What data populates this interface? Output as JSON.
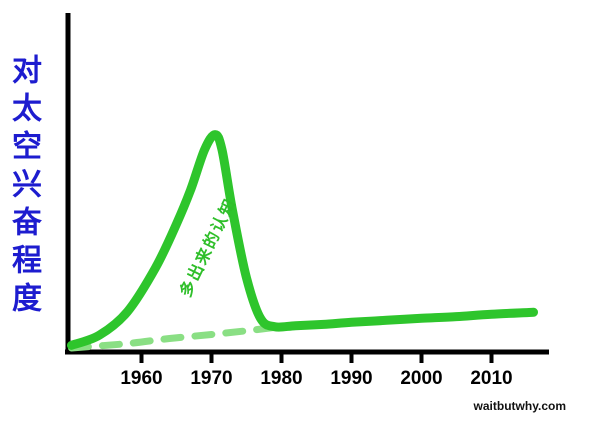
{
  "page": {
    "background": "#ffffff"
  },
  "y_axis_title": {
    "text": "对太空兴奋程度",
    "color": "#1d1ccf"
  },
  "watermark": "waitbutwhy.com",
  "chart_data": {
    "type": "line",
    "title": "",
    "xlabel": "",
    "ylabel": "对太空兴奋程度",
    "x_ticks": [
      1960,
      1970,
      1980,
      1990,
      2000,
      2010
    ],
    "x_range": [
      1950,
      2017
    ],
    "y_range": [
      0,
      1
    ],
    "grid": false,
    "legend": "none",
    "annotation": {
      "text": "多出来的认知",
      "color": "#2fbf2a",
      "x_year": 1966.8,
      "y_value": 0.16,
      "rotation_deg": -64
    },
    "series": [
      {
        "name": "excitement-curve",
        "style": "solid",
        "color": "#2ec52c",
        "width": 9,
        "points": [
          [
            1950,
            0.02
          ],
          [
            1954,
            0.05
          ],
          [
            1958,
            0.12
          ],
          [
            1962,
            0.25
          ],
          [
            1965,
            0.38
          ],
          [
            1967,
            0.48
          ],
          [
            1969,
            0.6
          ],
          [
            1970.5,
            0.645
          ],
          [
            1971.5,
            0.6
          ],
          [
            1973,
            0.42
          ],
          [
            1975,
            0.22
          ],
          [
            1977,
            0.1
          ],
          [
            1979,
            0.075
          ],
          [
            1982,
            0.078
          ],
          [
            1986,
            0.082
          ],
          [
            1990,
            0.088
          ],
          [
            1995,
            0.094
          ],
          [
            2000,
            0.1
          ],
          [
            2005,
            0.105
          ],
          [
            2010,
            0.112
          ],
          [
            2016,
            0.118
          ]
        ]
      },
      {
        "name": "baseline-dashed",
        "style": "dashed",
        "color": "#8adf84",
        "width": 7,
        "points": [
          [
            1950,
            0.012
          ],
          [
            1958,
            0.025
          ],
          [
            1964,
            0.04
          ],
          [
            1970,
            0.052
          ],
          [
            1975,
            0.063
          ],
          [
            1979,
            0.073
          ]
        ]
      }
    ]
  }
}
